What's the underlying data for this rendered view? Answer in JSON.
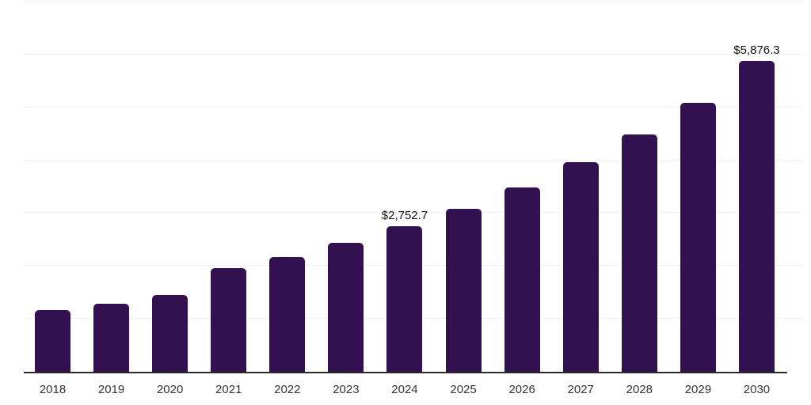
{
  "chart_data": {
    "type": "bar",
    "categories": [
      "2018",
      "2019",
      "2020",
      "2021",
      "2022",
      "2023",
      "2024",
      "2025",
      "2026",
      "2027",
      "2028",
      "2029",
      "2030"
    ],
    "values": [
      1160,
      1293,
      1452,
      1959,
      2172,
      2432,
      2752.7,
      3084,
      3486,
      3968,
      4493,
      5088,
      5876.3
    ],
    "data_labels": {
      "2024": "$2,752.7",
      "2030": "$5,876.3"
    },
    "xlabel": "",
    "ylabel": "",
    "ylim": [
      0,
      7000
    ],
    "gridline_step": 1000,
    "grid": true,
    "legend_position": "none",
    "bar_color": "#331150",
    "grid_color": "#f0f0f0",
    "axis_color": "#2b2b2b",
    "tick_label_color": "#333333",
    "data_label_color": "#111111"
  }
}
